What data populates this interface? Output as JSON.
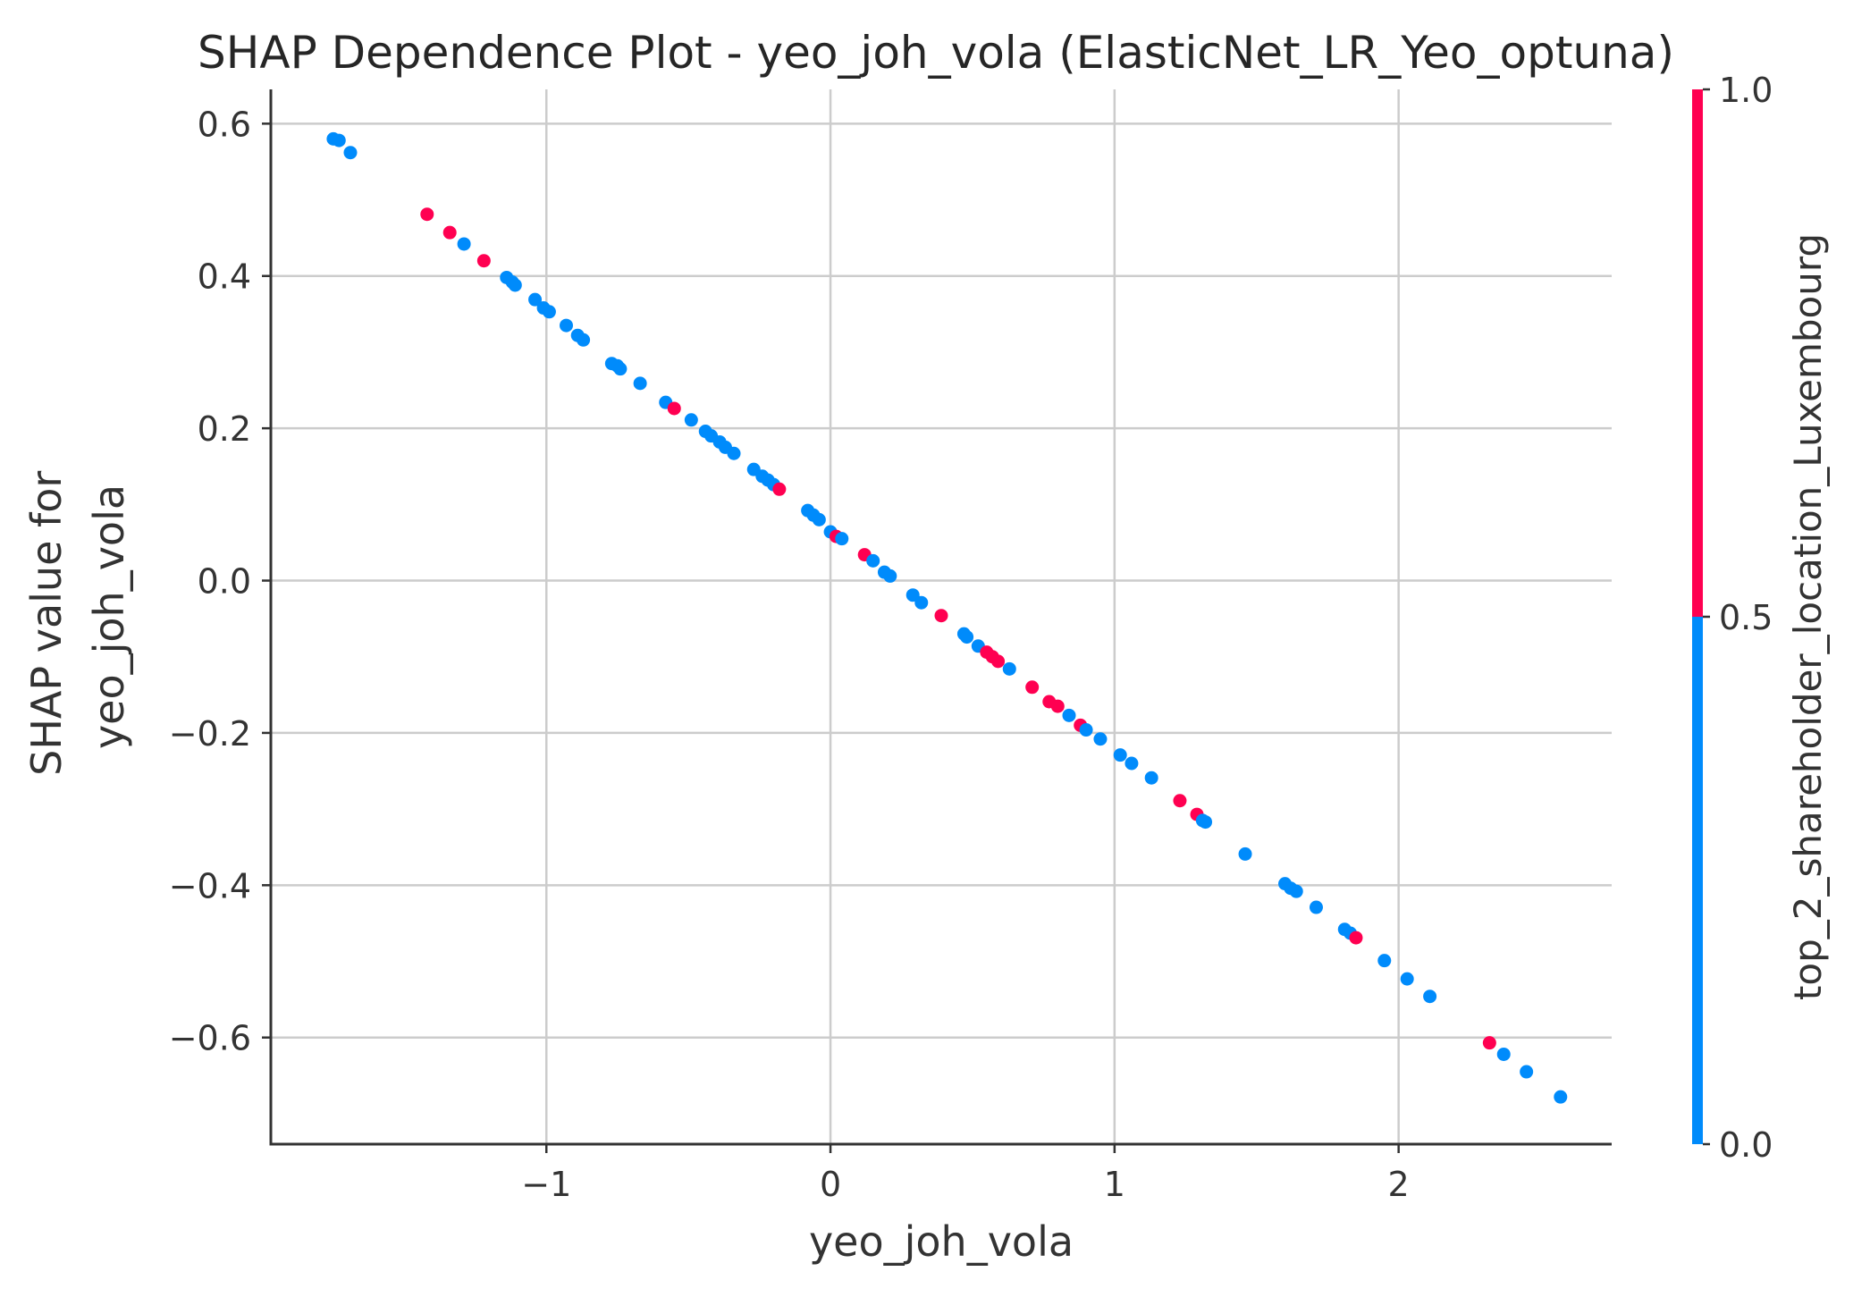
{
  "chart_data": {
    "type": "scatter",
    "title": "SHAP Dependence Plot - yeo_joh_vola (ElasticNet_LR_Yeo_optuna)",
    "xlabel": "yeo_joh_vola",
    "ylabel": [
      "SHAP value for",
      "yeo_joh_vola"
    ],
    "xlim": [
      -1.97,
      2.75
    ],
    "ylim": [
      -0.74,
      0.645
    ],
    "x_ticks": [
      -1,
      0,
      1,
      2
    ],
    "x_tick_labels": [
      "−1",
      "0",
      "1",
      "2"
    ],
    "y_ticks": [
      0.6,
      0.4,
      0.2,
      0.0,
      -0.2,
      -0.4,
      -0.6
    ],
    "y_tick_labels": [
      "0.6",
      "0.4",
      "0.2",
      "0.0",
      "−0.2",
      "−0.4",
      "−0.6"
    ],
    "grid": true,
    "colors": {
      "low": "#008bfb",
      "high": "#ff0051"
    },
    "colorbar": {
      "label": "top_2_shareholder_location_Luxembourg",
      "range": [
        0.0,
        1.0
      ],
      "ticks": [
        0.0,
        0.5,
        1.0
      ],
      "tick_labels": [
        "0.0",
        "0.5",
        "1.0"
      ]
    },
    "points": [
      {
        "x": -1.75,
        "y": 0.58,
        "c": 0
      },
      {
        "x": -1.73,
        "y": 0.578,
        "c": 0
      },
      {
        "x": -1.69,
        "y": 0.562,
        "c": 0
      },
      {
        "x": -1.42,
        "y": 0.481,
        "c": 1
      },
      {
        "x": -1.34,
        "y": 0.457,
        "c": 1
      },
      {
        "x": -1.29,
        "y": 0.442,
        "c": 0
      },
      {
        "x": -1.22,
        "y": 0.42,
        "c": 1
      },
      {
        "x": -1.14,
        "y": 0.398,
        "c": 0
      },
      {
        "x": -1.12,
        "y": 0.392,
        "c": 0
      },
      {
        "x": -1.11,
        "y": 0.388,
        "c": 0
      },
      {
        "x": -1.04,
        "y": 0.369,
        "c": 0
      },
      {
        "x": -1.01,
        "y": 0.358,
        "c": 0
      },
      {
        "x": -0.99,
        "y": 0.353,
        "c": 0
      },
      {
        "x": -0.93,
        "y": 0.335,
        "c": 0
      },
      {
        "x": -0.89,
        "y": 0.322,
        "c": 0
      },
      {
        "x": -0.87,
        "y": 0.316,
        "c": 0
      },
      {
        "x": -0.77,
        "y": 0.285,
        "c": 0
      },
      {
        "x": -0.75,
        "y": 0.282,
        "c": 0
      },
      {
        "x": -0.74,
        "y": 0.278,
        "c": 0
      },
      {
        "x": -0.67,
        "y": 0.259,
        "c": 0
      },
      {
        "x": -0.58,
        "y": 0.234,
        "c": 0
      },
      {
        "x": -0.55,
        "y": 0.226,
        "c": 1
      },
      {
        "x": -0.49,
        "y": 0.211,
        "c": 0
      },
      {
        "x": -0.44,
        "y": 0.196,
        "c": 0
      },
      {
        "x": -0.42,
        "y": 0.19,
        "c": 0
      },
      {
        "x": -0.39,
        "y": 0.182,
        "c": 0
      },
      {
        "x": -0.37,
        "y": 0.175,
        "c": 0
      },
      {
        "x": -0.34,
        "y": 0.167,
        "c": 0
      },
      {
        "x": -0.27,
        "y": 0.146,
        "c": 0
      },
      {
        "x": -0.24,
        "y": 0.137,
        "c": 0
      },
      {
        "x": -0.22,
        "y": 0.132,
        "c": 0
      },
      {
        "x": -0.2,
        "y": 0.126,
        "c": 0
      },
      {
        "x": -0.18,
        "y": 0.12,
        "c": 1
      },
      {
        "x": -0.08,
        "y": 0.092,
        "c": 0
      },
      {
        "x": -0.06,
        "y": 0.086,
        "c": 0
      },
      {
        "x": -0.04,
        "y": 0.08,
        "c": 0
      },
      {
        "x": 0.0,
        "y": 0.064,
        "c": 0
      },
      {
        "x": 0.02,
        "y": 0.058,
        "c": 1
      },
      {
        "x": 0.04,
        "y": 0.055,
        "c": 0
      },
      {
        "x": 0.12,
        "y": 0.034,
        "c": 1
      },
      {
        "x": 0.15,
        "y": 0.026,
        "c": 0
      },
      {
        "x": 0.19,
        "y": 0.011,
        "c": 0
      },
      {
        "x": 0.21,
        "y": 0.006,
        "c": 0
      },
      {
        "x": 0.29,
        "y": -0.019,
        "c": 0
      },
      {
        "x": 0.32,
        "y": -0.029,
        "c": 0
      },
      {
        "x": 0.39,
        "y": -0.046,
        "c": 1
      },
      {
        "x": 0.47,
        "y": -0.07,
        "c": 0
      },
      {
        "x": 0.48,
        "y": -0.074,
        "c": 0
      },
      {
        "x": 0.52,
        "y": -0.086,
        "c": 0
      },
      {
        "x": 0.55,
        "y": -0.094,
        "c": 1
      },
      {
        "x": 0.57,
        "y": -0.1,
        "c": 1
      },
      {
        "x": 0.59,
        "y": -0.106,
        "c": 1
      },
      {
        "x": 0.63,
        "y": -0.116,
        "c": 0
      },
      {
        "x": 0.71,
        "y": -0.14,
        "c": 1
      },
      {
        "x": 0.77,
        "y": -0.159,
        "c": 1
      },
      {
        "x": 0.8,
        "y": -0.165,
        "c": 1
      },
      {
        "x": 0.84,
        "y": -0.177,
        "c": 0
      },
      {
        "x": 0.88,
        "y": -0.19,
        "c": 1
      },
      {
        "x": 0.9,
        "y": -0.196,
        "c": 0
      },
      {
        "x": 0.95,
        "y": -0.208,
        "c": 0
      },
      {
        "x": 1.02,
        "y": -0.229,
        "c": 0
      },
      {
        "x": 1.06,
        "y": -0.24,
        "c": 0
      },
      {
        "x": 1.13,
        "y": -0.259,
        "c": 0
      },
      {
        "x": 1.23,
        "y": -0.289,
        "c": 1
      },
      {
        "x": 1.29,
        "y": -0.307,
        "c": 1
      },
      {
        "x": 1.31,
        "y": -0.315,
        "c": 0
      },
      {
        "x": 1.32,
        "y": -0.317,
        "c": 0
      },
      {
        "x": 1.46,
        "y": -0.359,
        "c": 0
      },
      {
        "x": 1.6,
        "y": -0.398,
        "c": 0
      },
      {
        "x": 1.62,
        "y": -0.404,
        "c": 0
      },
      {
        "x": 1.64,
        "y": -0.408,
        "c": 0
      },
      {
        "x": 1.71,
        "y": -0.429,
        "c": 0
      },
      {
        "x": 1.81,
        "y": -0.458,
        "c": 0
      },
      {
        "x": 1.83,
        "y": -0.463,
        "c": 0
      },
      {
        "x": 1.85,
        "y": -0.469,
        "c": 1
      },
      {
        "x": 1.95,
        "y": -0.499,
        "c": 0
      },
      {
        "x": 2.03,
        "y": -0.523,
        "c": 0
      },
      {
        "x": 2.11,
        "y": -0.546,
        "c": 0
      },
      {
        "x": 2.32,
        "y": -0.607,
        "c": 1
      },
      {
        "x": 2.37,
        "y": -0.622,
        "c": 0
      },
      {
        "x": 2.45,
        "y": -0.645,
        "c": 0
      },
      {
        "x": 2.57,
        "y": -0.678,
        "c": 0
      }
    ]
  }
}
